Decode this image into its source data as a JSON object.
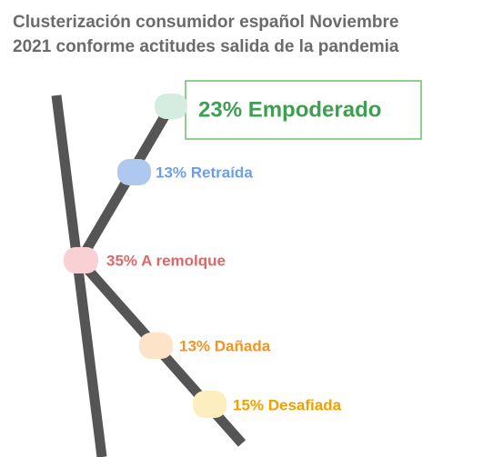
{
  "header": {
    "title": [
      "Clusterización consumidor español Noviembre",
      "2021 conforme actitudes salida de la pandemia"
    ]
  },
  "nodes": [
    {
      "label": "23% Empoderado"
    },
    {
      "label": "13% Retraída"
    },
    {
      "label": "35% A remolque"
    },
    {
      "label": "13% Dañada"
    },
    {
      "label": "15% Desafiada"
    }
  ]
}
